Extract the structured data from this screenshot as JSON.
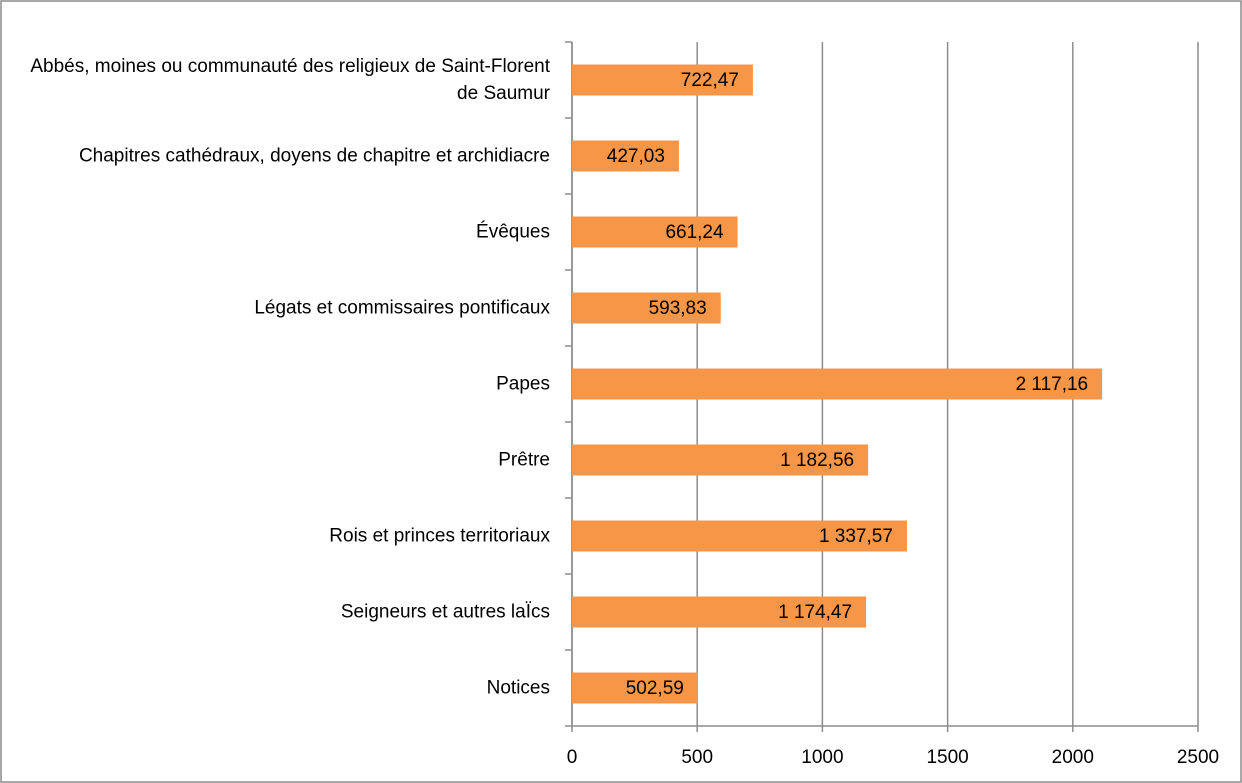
{
  "chart_data": {
    "type": "bar",
    "orientation": "horizontal",
    "categories": [
      "Abbés, moines ou communauté des religieux de Saint-Florent de Saumur",
      "Chapitres cathédraux, doyens de chapitre et archidiacre",
      "Évêques",
      "Légats et commissaires pontificaux",
      "Papes",
      "Prêtre",
      "Rois et princes territoriaux",
      "Seigneurs et autres laÏcs",
      "Notices"
    ],
    "values": [
      722.47,
      427.03,
      661.24,
      593.83,
      2117.16,
      1182.56,
      1337.57,
      1174.47,
      502.59
    ],
    "value_labels": [
      "722,47",
      "427,03",
      "661,24",
      "593,83",
      "2 117,16",
      "1 182,56",
      "1 337,57",
      "1 174,47",
      "502,59"
    ],
    "color": "#f79646",
    "xlim": [
      0,
      2500
    ],
    "xticks": [
      0,
      500,
      1000,
      1500,
      2000,
      2500
    ],
    "grid": true
  }
}
